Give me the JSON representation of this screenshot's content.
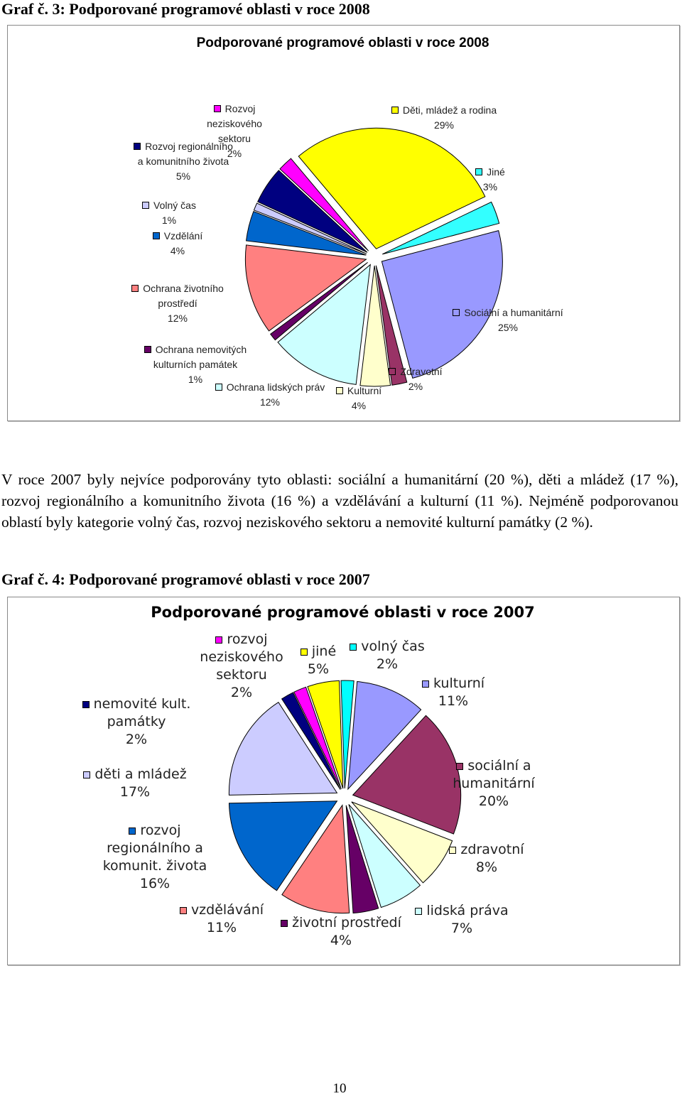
{
  "headings": [
    "Graf č. 3: Podporované programové oblasti v roce 2008",
    "Graf č. 4: Podporované programové oblasti v roce 2007"
  ],
  "paragraph": "V roce 2007 byly nejvíce podporovány tyto oblasti: sociální a humanitární (20 %), děti a mládež (17 %), rozvoj regionálního a komunitního života (16 %) a vzdělávání a kulturní (11 %). Nejméně podporovanou oblastí byly kategorie volný čas, rozvoj neziskového sektoru a nemovité kulturní památky (2 %).",
  "page_number": "10",
  "chart_data": [
    {
      "type": "pie",
      "title": "Podporované programové oblasti v roce 2008",
      "categories": [
        "Děti, mládež a rodina",
        "Jiné",
        "Sociální a humanitární",
        "Zdravotní",
        "Kulturní",
        "Ochrana lidských práv",
        "Ochrana nemovitých kulturních památek",
        "Ochrana životního prostředí",
        "Vzdělání",
        "Volný čas",
        "Rozvoj regionálního a komunitního života",
        "Rozvoj neziskového sektoru"
      ],
      "values": [
        29,
        3,
        25,
        2,
        4,
        12,
        1,
        12,
        4,
        1,
        5,
        2
      ],
      "value_labels": [
        "29%",
        "3%",
        "25%",
        "2%",
        "4%",
        "12%",
        "1%",
        "12%",
        "4%",
        "1%",
        "5%",
        "2%"
      ],
      "colors": [
        "#ffff00",
        "#33ffff",
        "#9999ff",
        "#993366",
        "#ffffcc",
        "#ccffff",
        "#660066",
        "#ff8080",
        "#0066cc",
        "#ccccff",
        "#000080",
        "#ff00ff"
      ]
    },
    {
      "type": "pie",
      "title": "Podporované programové oblasti v roce 2007",
      "categories": [
        "volný čas",
        "kulturní",
        "sociální a humanitární",
        "zdravotní",
        "lidská práva",
        "životní prostředí",
        "vzdělávání",
        "rozvoj regionálního a komunit. života",
        "děti a mládež",
        "nemovité kult. památky",
        "rozvoj neziskového sektoru",
        "jiné"
      ],
      "values": [
        2,
        11,
        20,
        8,
        7,
        4,
        11,
        16,
        17,
        2,
        2,
        5
      ],
      "value_labels": [
        "2%",
        "11%",
        "20%",
        "8%",
        "7%",
        "4%",
        "11%",
        "16%",
        "17%",
        "2%",
        "2%",
        "5%"
      ],
      "colors": [
        "#00ffff",
        "#9999ff",
        "#993366",
        "#ffffcc",
        "#ccffff",
        "#660066",
        "#ff8080",
        "#0066cc",
        "#ccccff",
        "#000080",
        "#ff00ff",
        "#ffff00"
      ]
    }
  ]
}
